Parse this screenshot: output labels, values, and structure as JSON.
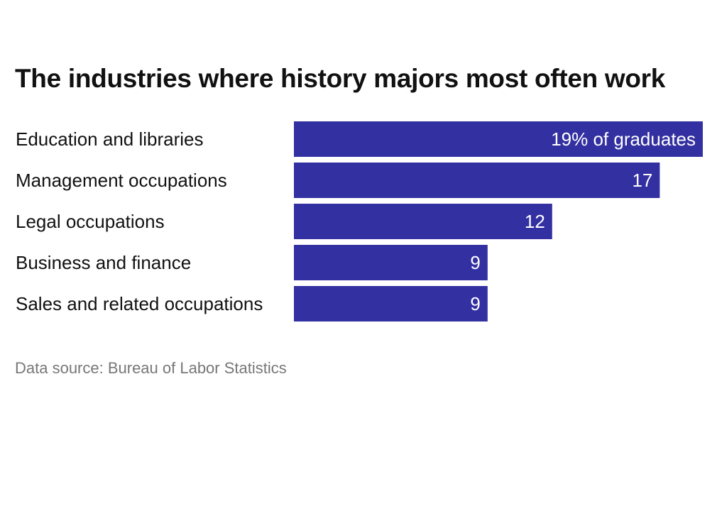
{
  "chart_data": {
    "type": "bar",
    "orientation": "horizontal",
    "title": "The industries where history majors most often work",
    "categories": [
      "Education and libraries",
      "Management occupations",
      "Legal occupations",
      "Business and finance",
      "Sales and related occupations"
    ],
    "values": [
      19,
      17,
      12,
      9,
      9
    ],
    "value_labels": [
      "19% of graduates",
      "17",
      "12",
      "9",
      "9"
    ],
    "unit": "% of graduates",
    "xlim": [
      0,
      19
    ],
    "bar_color": "#3330a1",
    "label_color": "#ffffff",
    "xlabel": "",
    "ylabel": "",
    "grid": false,
    "legend": "none"
  },
  "footer": {
    "source": "Data source: Bureau of Labor Statistics"
  }
}
